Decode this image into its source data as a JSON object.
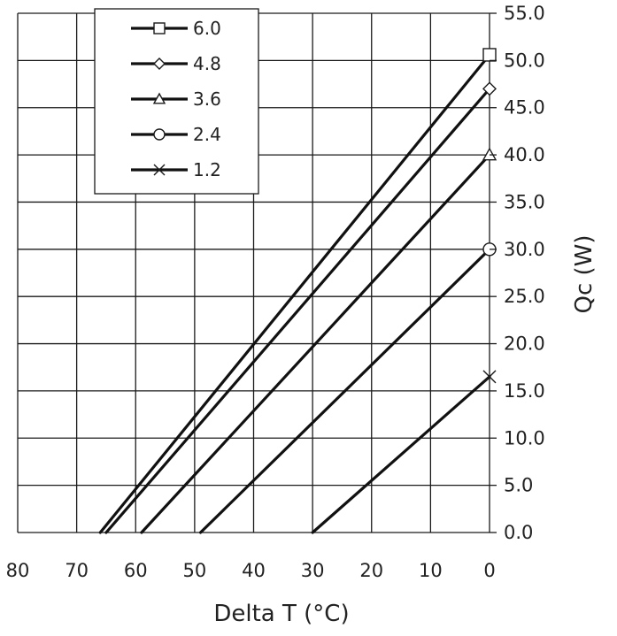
{
  "chart_data": {
    "type": "line",
    "xlabel": "Delta T (°C)",
    "ylabel": "Qc (W)",
    "x_reversed": true,
    "y_axis_side": "right",
    "xlim": [
      0,
      80
    ],
    "ylim": [
      0,
      55
    ],
    "x_ticks": [
      80,
      70,
      60,
      50,
      40,
      30,
      20,
      10,
      0
    ],
    "x_tick_labels": [
      "80",
      "70",
      "60",
      "50",
      "40",
      "30",
      "20",
      "10",
      "0"
    ],
    "y_ticks": [
      0,
      5,
      10,
      15,
      20,
      25,
      30,
      35,
      40,
      45,
      50,
      55
    ],
    "y_tick_labels": [
      "0.0",
      "5.0",
      "10.0",
      "15.0",
      "20.0",
      "25.0",
      "30.0",
      "35.0",
      "40.0",
      "45.0",
      "50.0",
      "55.0"
    ],
    "grid": true,
    "legend": "top-left",
    "series": [
      {
        "name": "6.0",
        "marker": "square",
        "x": [
          66,
          0
        ],
        "y": [
          0,
          50.6
        ]
      },
      {
        "name": "4.8",
        "marker": "diamond",
        "x": [
          65,
          0
        ],
        "y": [
          0,
          47.0
        ]
      },
      {
        "name": "3.6",
        "marker": "triangle",
        "x": [
          59,
          0
        ],
        "y": [
          0,
          40.0
        ]
      },
      {
        "name": "2.4",
        "marker": "circle",
        "x": [
          49,
          0
        ],
        "y": [
          0,
          30.0
        ]
      },
      {
        "name": "1.2",
        "marker": "x",
        "x": [
          30,
          0
        ],
        "y": [
          0,
          16.5
        ]
      }
    ]
  }
}
